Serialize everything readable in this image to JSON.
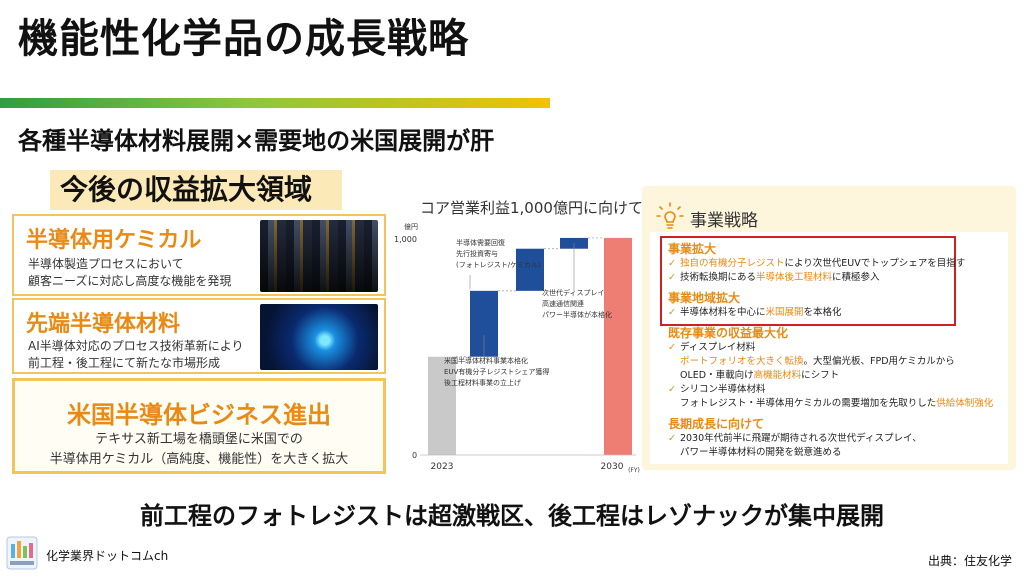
{
  "title": "機能性化学品の成長戦略",
  "subtitle": "各種半導体材料展開×需要地の米国展開が肝",
  "left_heading": "今後の収益拡大領域",
  "cards": [
    {
      "title": "半導体用ケミカル",
      "lines": [
        "半導体製造プロセスにおいて",
        "顧客ニーズに対応し高度な機能を発現"
      ]
    },
    {
      "title": "先端半導体材料",
      "lines": [
        "AI半導体対応のプロセス技術革新により",
        "前工程・後工程にて新たな市場形成"
      ]
    },
    {
      "title": "米国半導体ビジネス進出",
      "lines": [
        "テキサス新工場を橋頭堡に米国での",
        "半導体用ケミカル（高純度、機能性）を大きく拡大"
      ]
    }
  ],
  "chart_title": "コア営業利益1,000億円に向けて",
  "chart_data": {
    "type": "bar",
    "subtype": "waterfall",
    "ylabel": "億円",
    "ylim": [
      0,
      1000
    ],
    "yticks": [
      "0",
      "1,000"
    ],
    "x_start_label": "2023",
    "x_end_label": "2030",
    "x_end_unit": "(FY)",
    "bars": [
      {
        "kind": "start",
        "base": 0,
        "value": 455
      },
      {
        "kind": "step",
        "base": 455,
        "value": 760
      },
      {
        "kind": "step",
        "base": 760,
        "value": 955
      },
      {
        "kind": "step",
        "base": 955,
        "value": 1005
      },
      {
        "kind": "end",
        "base": 0,
        "value": 1005
      }
    ],
    "annotations": [
      {
        "lines": [
          "米国半導体材料事業本格化",
          "EUV有機分子レジストシェア獲得",
          "後工程材料事業の立上げ"
        ]
      },
      {
        "lines": [
          "半導体需要回復",
          "先行投資寄与",
          "(フォトレジスト/ケミカル)"
        ]
      },
      {
        "lines": [
          "次世代ディスプレイ",
          "高速通信関連",
          "パワー半導体が本格化"
        ]
      }
    ],
    "colors": {
      "start": "#c9c9c9",
      "step": "#1f4e9a",
      "end": "#ee7d74"
    }
  },
  "strategy": {
    "heading": "事業戦略",
    "sections": [
      {
        "title": "事業拡大",
        "items": [
          [
            {
              "t": "独自の有機分子レジスト",
              "hl": true
            },
            {
              "t": "により次世代EUVでトップシェアを目指す",
              "hl": false
            }
          ],
          [
            {
              "t": "技術転換期にある",
              "hl": false
            },
            {
              "t": "半導体後工程材料",
              "hl": true
            },
            {
              "t": "に積極参入",
              "hl": false
            }
          ]
        ]
      },
      {
        "title": "事業地域拡大",
        "items": [
          [
            {
              "t": "半導体材料を中心に",
              "hl": false
            },
            {
              "t": "米国展開",
              "hl": true
            },
            {
              "t": "を本格化",
              "hl": false
            }
          ]
        ]
      },
      {
        "title": "既存事業の収益最大化",
        "items": [
          [
            {
              "t": "ディスプレイ材料",
              "hl": false
            }
          ],
          [
            {
              "t": "ポートフォリオを大きく転換",
              "hl": true
            },
            {
              "t": "。大型偏光板、FPD用ケミカルから",
              "hl": false
            }
          ],
          [
            {
              "t": "OLED・車載向け",
              "hl": false
            },
            {
              "t": "高機能材料",
              "hl": true
            },
            {
              "t": "にシフト",
              "hl": false
            }
          ],
          [
            {
              "t": "シリコン半導体材料",
              "hl": false
            }
          ],
          [
            {
              "t": "フォトレジスト・半導体用ケミカルの需要増加を先取りした",
              "hl": false
            },
            {
              "t": "供給体制強化",
              "hl": true
            }
          ]
        ]
      },
      {
        "title": "長期成長に向けて",
        "items": [
          [
            {
              "t": "2030年代前半に飛躍が期待される次世代ディスプレイ、",
              "hl": false
            }
          ],
          [
            {
              "t": "パワー半導体材料の開発を鋭意進める",
              "hl": false
            }
          ]
        ]
      }
    ]
  },
  "bottom_message": "前工程のフォトレジストは超激戦区、後工程はレゾナックが集中展開",
  "footer": {
    "channel": "化学業界ドットコムch",
    "source": "出典：住友化学",
    "logo_icon": "chemistry-channel-logo-icon"
  }
}
